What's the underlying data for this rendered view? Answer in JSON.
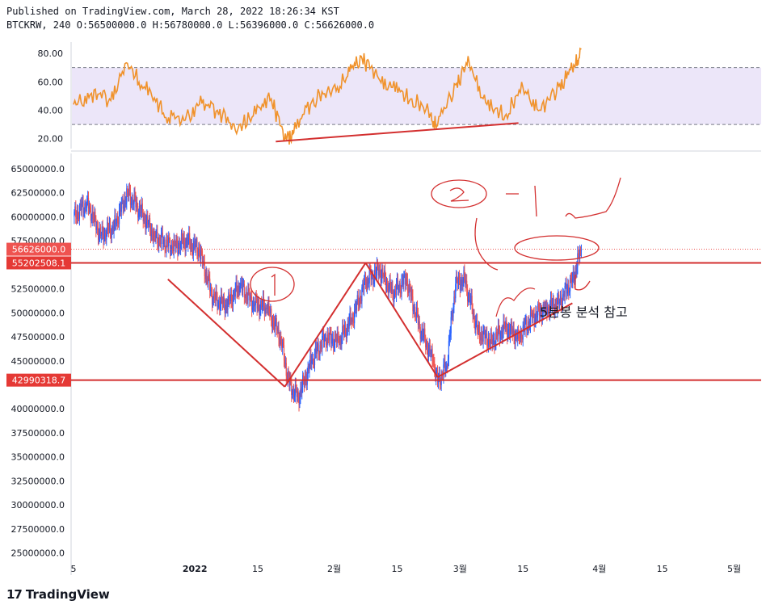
{
  "header": {
    "published": "Published on TradingView.com, March 28, 2022 18:26:34 KST",
    "ohlc": "BTCKRW, 240 O:56500000.0 H:56780000.0 L:56396000.0 C:56626000.0"
  },
  "footer": {
    "brand": "TradingView",
    "logo_glyph": "17"
  },
  "colors": {
    "rsi_line": "#f0922b",
    "rsi_band": "#ece6f9",
    "candle_up": "#2962ff",
    "candle_down": "#ef5350",
    "annotation": "#d32f2f",
    "price_label_bg": "#e53935",
    "last_price_label_bg": "#ef5350"
  },
  "chart_data": [
    {
      "type": "line",
      "name": "rsi_panel",
      "yticks": [
        "80.00",
        "60.00",
        "40.00",
        "20.00"
      ],
      "ytick_values": [
        80,
        60,
        40,
        20
      ],
      "ylim": [
        13,
        88
      ],
      "bands": [
        30,
        70
      ],
      "x_dates": [
        "2021-12-05",
        "2021-12-09",
        "2021-12-13",
        "2021-12-17",
        "2021-12-21",
        "2021-12-25",
        "2021-12-29",
        "2022-01-02",
        "2022-01-06",
        "2022-01-10",
        "2022-01-14",
        "2022-01-18",
        "2022-01-21",
        "2022-01-23",
        "2022-01-27",
        "2022-01-31",
        "2022-02-04",
        "2022-02-07",
        "2022-02-10",
        "2022-02-14",
        "2022-02-18",
        "2022-02-22",
        "2022-02-24",
        "2022-02-28",
        "2022-03-03",
        "2022-03-07",
        "2022-03-11",
        "2022-03-15",
        "2022-03-19",
        "2022-03-23",
        "2022-03-26",
        "2022-03-28"
      ],
      "values": [
        44,
        52,
        48,
        73,
        55,
        38,
        32,
        44,
        40,
        26,
        36,
        48,
        20,
        24,
        46,
        53,
        64,
        78,
        66,
        56,
        48,
        39,
        29,
        58,
        74,
        44,
        36,
        56,
        40,
        57,
        69,
        83
      ],
      "trendline": {
        "from": [
          "2022-01-19",
          18
        ],
        "to": [
          "2022-03-14",
          31
        ]
      }
    },
    {
      "type": "line",
      "name": "price_panel",
      "symbol": "BTCKRW",
      "interval": "240",
      "yticks": [
        "65000000.0",
        "62500000.0",
        "60000000.0",
        "57500000.0",
        "52500000.0",
        "50000000.0",
        "47500000.0",
        "45000000.0",
        "40000000.0",
        "37500000.0",
        "35000000.0",
        "32500000.0",
        "30000000.0",
        "27500000.0",
        "25000000.0"
      ],
      "ytick_values": [
        65000000,
        62500000,
        60000000,
        57500000,
        52500000,
        50000000,
        47500000,
        45000000,
        40000000,
        37500000,
        35000000,
        32500000,
        30000000,
        27500000,
        25000000
      ],
      "ylim": [
        24200000,
        66600000
      ],
      "xticks": [
        "5",
        "2022",
        "15",
        "2월",
        "15",
        "3월",
        "15",
        "4월",
        "15",
        "5월"
      ],
      "xtick_dates": [
        "2021-12-05",
        "2022-01-01",
        "2022-01-15",
        "2022-02-01",
        "2022-02-15",
        "2022-03-01",
        "2022-03-15",
        "2022-04-01",
        "2022-04-15",
        "2022-05-01"
      ],
      "xlim": [
        "2021-12-05",
        "2022-05-07"
      ],
      "x_dates": [
        "2021-12-05",
        "2021-12-08",
        "2021-12-11",
        "2021-12-14",
        "2021-12-17",
        "2021-12-20",
        "2021-12-23",
        "2021-12-27",
        "2021-12-30",
        "2022-01-02",
        "2022-01-05",
        "2022-01-08",
        "2022-01-11",
        "2022-01-14",
        "2022-01-17",
        "2022-01-20",
        "2022-01-22",
        "2022-01-24",
        "2022-01-27",
        "2022-01-30",
        "2022-02-02",
        "2022-02-05",
        "2022-02-08",
        "2022-02-11",
        "2022-02-14",
        "2022-02-17",
        "2022-02-20",
        "2022-02-23",
        "2022-02-24",
        "2022-02-26",
        "2022-02-28",
        "2022-03-02",
        "2022-03-05",
        "2022-03-08",
        "2022-03-11",
        "2022-03-14",
        "2022-03-17",
        "2022-03-20",
        "2022-03-23",
        "2022-03-26",
        "2022-03-28"
      ],
      "values": [
        60000000,
        61500000,
        58000000,
        59000000,
        62500000,
        60500000,
        58000000,
        56800000,
        57500000,
        56500000,
        51500000,
        50800000,
        52800000,
        51000000,
        50500000,
        47500000,
        42500000,
        41200000,
        45000000,
        47500000,
        47000000,
        49500000,
        53200000,
        54500000,
        52000000,
        53500000,
        48500000,
        45000000,
        42800000,
        44500000,
        53000000,
        53500000,
        48000000,
        47000000,
        48500000,
        47500000,
        49500000,
        50500000,
        51000000,
        53500000,
        56626000
      ],
      "h_levels": [
        {
          "value": 55202508.1,
          "label": "55202508.1"
        },
        {
          "value": 42990318.7,
          "label": "42990318.7"
        }
      ],
      "last_price": {
        "value": 56626000.0,
        "label": "56626000.0"
      },
      "annotations": {
        "pattern_lines": [
          [
            [
              "2021-12-26",
              53500000
            ],
            [
              "2022-01-21",
              42300000
            ]
          ],
          [
            [
              "2022-01-21",
              42300000
            ],
            [
              "2022-02-08",
              55202508
            ]
          ],
          [
            [
              "2022-02-08",
              55202508
            ],
            [
              "2022-02-24",
              43300000
            ]
          ],
          [
            [
              "2022-02-24",
              43300000
            ],
            [
              "2022-03-26",
              51000000
            ]
          ]
        ],
        "note": "5분봉 분석 참고"
      }
    }
  ]
}
